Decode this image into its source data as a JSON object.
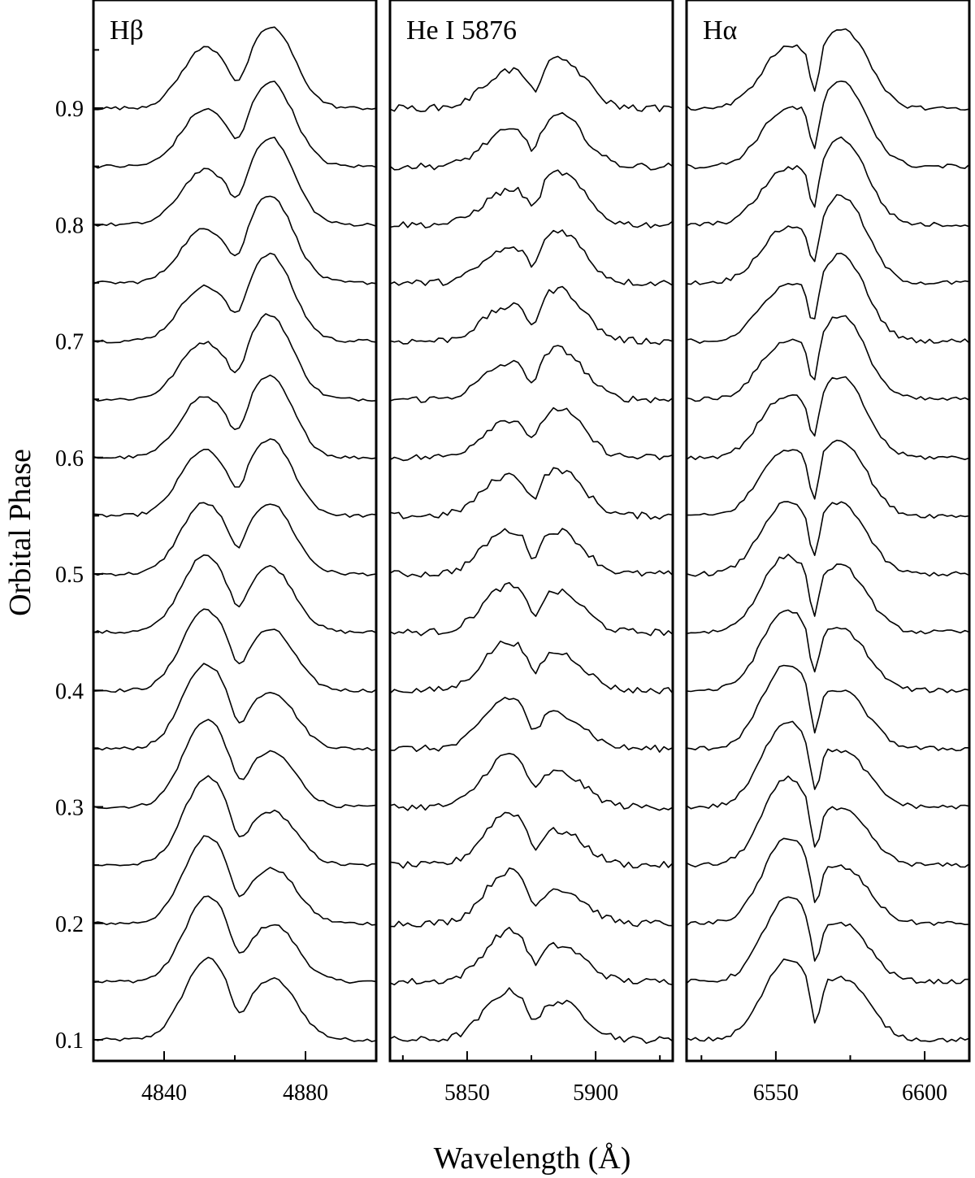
{
  "chart_data": {
    "type": "line",
    "ylabel": "Orbital Phase",
    "xlabel": "Wavelength (Å)",
    "y_ticks": [
      "0.1",
      "0.2",
      "0.3",
      "0.4",
      "0.5",
      "0.6",
      "0.7",
      "0.8",
      "0.9"
    ],
    "ylim": [
      0.09,
      0.97
    ],
    "phases": [
      0.1,
      0.15,
      0.2,
      0.25,
      0.3,
      0.35,
      0.4,
      0.45,
      0.5,
      0.55,
      0.6,
      0.65,
      0.7,
      0.75,
      0.8,
      0.85,
      0.9
    ],
    "panels": [
      {
        "label": "Hβ",
        "xlim": [
          4820,
          4900
        ],
        "x_ticks": [
          4840,
          4880
        ],
        "x_tick_labels": [
          "4840",
          "4880"
        ],
        "rest_wavelength": 4861,
        "separation": 19,
        "peak_width": 6.5,
        "dip_width": 2.2,
        "peak_height": 0.06,
        "dip_depth": 0.018,
        "noise": 0.0015
      },
      {
        "label": "He I 5876",
        "xlim": [
          5820,
          5930
        ],
        "x_ticks": [
          5850,
          5900
        ],
        "x_tick_labels": [
          "5850",
          "5900"
        ],
        "rest_wavelength": 5876,
        "separation": 22,
        "peak_width": 9,
        "dip_width": 2.5,
        "peak_height": 0.035,
        "dip_depth": 0.018,
        "noise": 0.003
      },
      {
        "label": "Hα",
        "xlim": [
          6520,
          6615
        ],
        "x_ticks": [
          6550,
          6600
        ],
        "x_tick_labels": [
          "6550",
          "6600"
        ],
        "rest_wavelength": 6563,
        "separation": 20,
        "peak_width": 8,
        "dip_width": 1.6,
        "peak_height": 0.058,
        "dip_depth": 0.038,
        "noise": 0.002
      }
    ]
  }
}
